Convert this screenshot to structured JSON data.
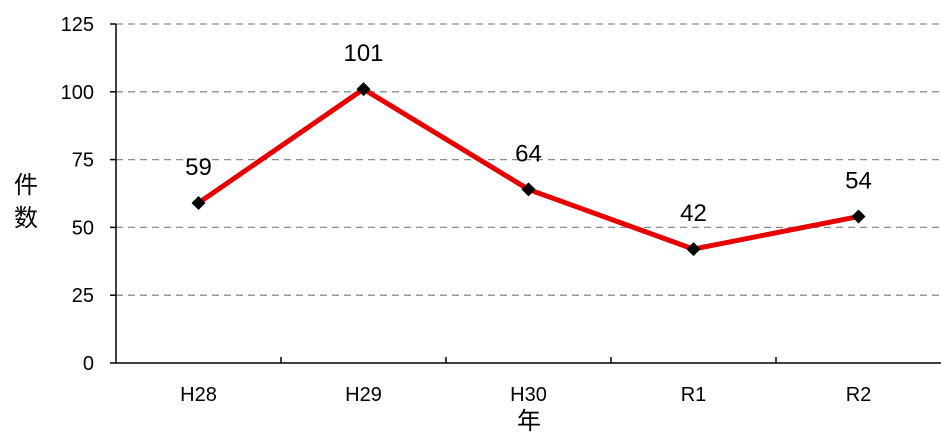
{
  "chart_data": {
    "type": "line",
    "categories": [
      "H28",
      "H29",
      "H30",
      "R1",
      "R2"
    ],
    "series": [
      {
        "values": [
          59,
          101,
          64,
          42,
          54
        ],
        "color": "#e60000"
      }
    ],
    "data_labels": [
      "59",
      "101",
      "64",
      "42",
      "54"
    ],
    "ylim": [
      0,
      125
    ],
    "yticks": [
      0,
      25,
      50,
      75,
      100,
      125
    ],
    "ytick_labels": [
      "0",
      "25",
      "50",
      "75",
      "100",
      "125"
    ],
    "ylabel": "件数",
    "xlabel": "年",
    "grid": "horizontal-dashed",
    "marker": "diamond",
    "marker_color": "#000000",
    "legend": "none"
  }
}
